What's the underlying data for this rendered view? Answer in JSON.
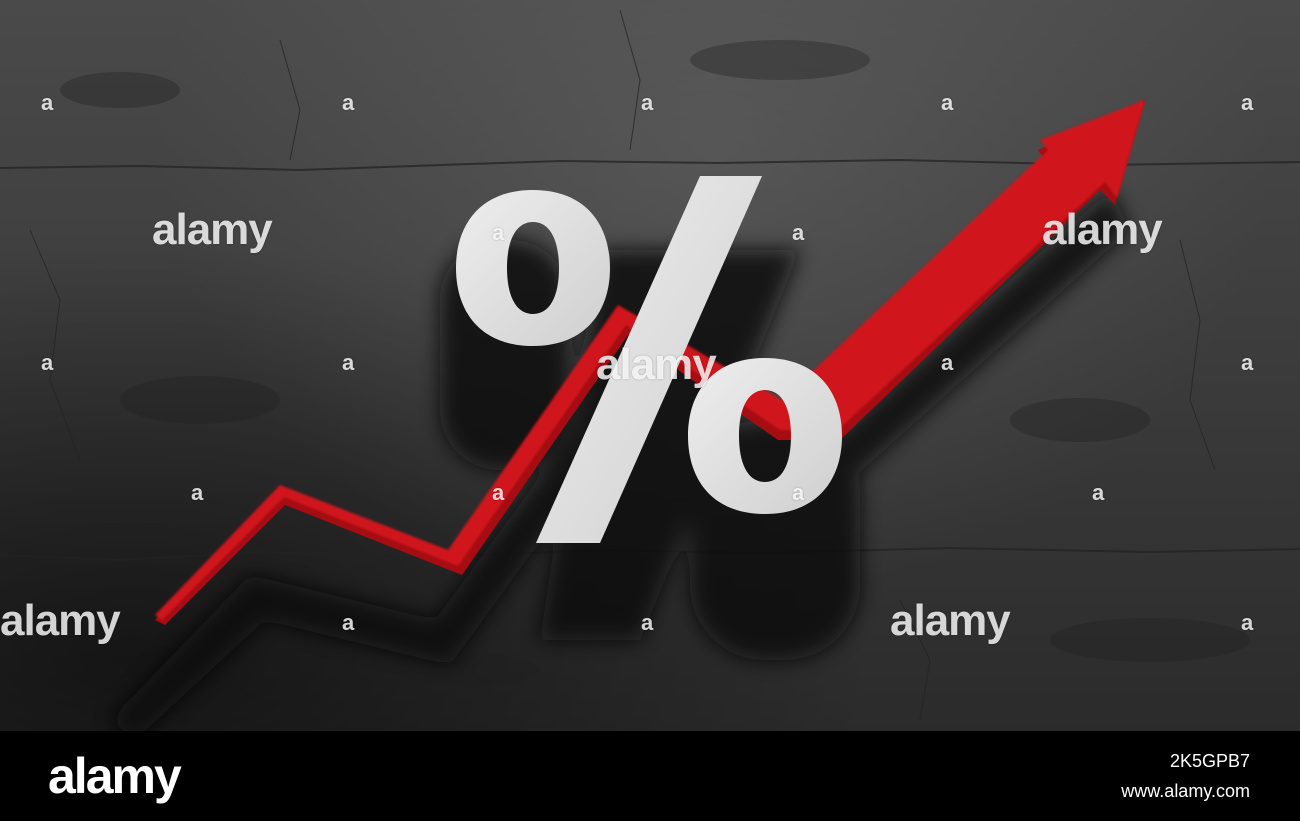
{
  "photo": {
    "symbol": "%",
    "wall_color": "#3f3f3f",
    "arrow_color": "#c8141a",
    "symbol_color": "#e2e2e2",
    "watermark": "alamy"
  },
  "footer": {
    "logo": "alamy",
    "image_id": "2K5GPB7",
    "url": "www.alamy.com"
  }
}
